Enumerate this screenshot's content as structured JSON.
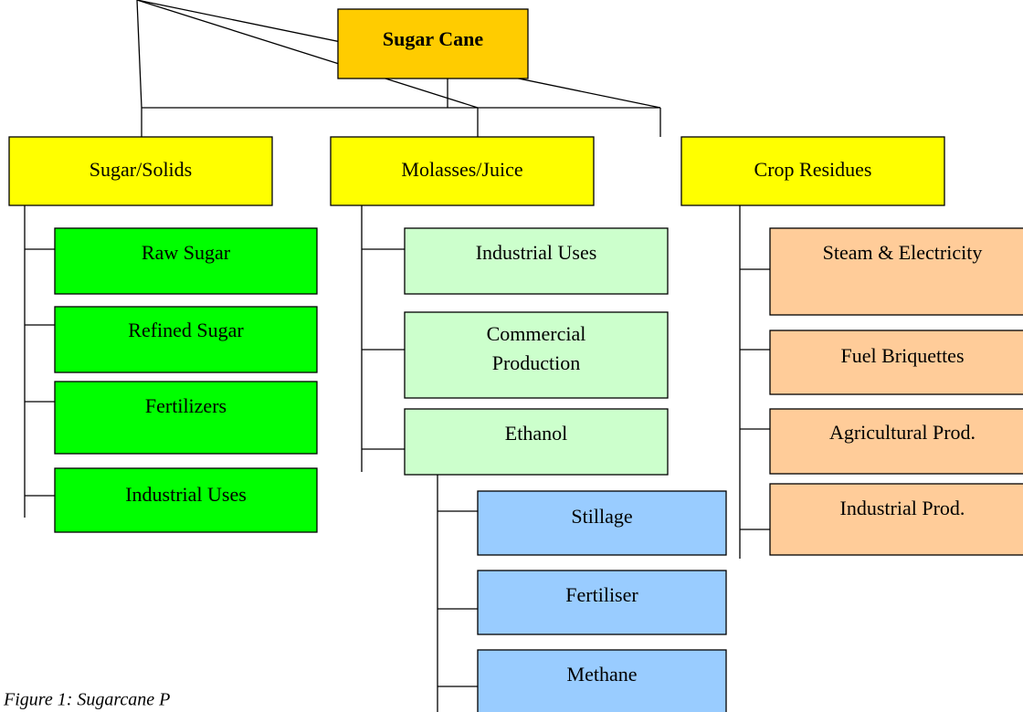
{
  "root": "Sugar Cane",
  "branches": [
    {
      "label": "Sugar/Solids",
      "items": [
        [
          "Raw Sugar"
        ],
        [
          "Refined Sugar"
        ],
        [
          "Fertilizers"
        ],
        [
          "Industrial Uses"
        ]
      ]
    },
    {
      "label": "Molasses/Juice",
      "items": [
        [
          "Industrial Uses"
        ],
        [
          "Commercial",
          "Production"
        ],
        [
          "Ethanol"
        ]
      ],
      "ethanol_items": [
        [
          "Stillage"
        ],
        [
          "Fertiliser"
        ],
        [
          "Methane"
        ]
      ]
    },
    {
      "label": "Crop Residues",
      "items": [
        [
          "Steam & Electricity"
        ],
        [
          "Fuel Briquettes"
        ],
        [
          "Agricultural Prod."
        ],
        [
          "Industrial Prod."
        ]
      ]
    }
  ],
  "caption": "Figure 1: Sugarcane P"
}
